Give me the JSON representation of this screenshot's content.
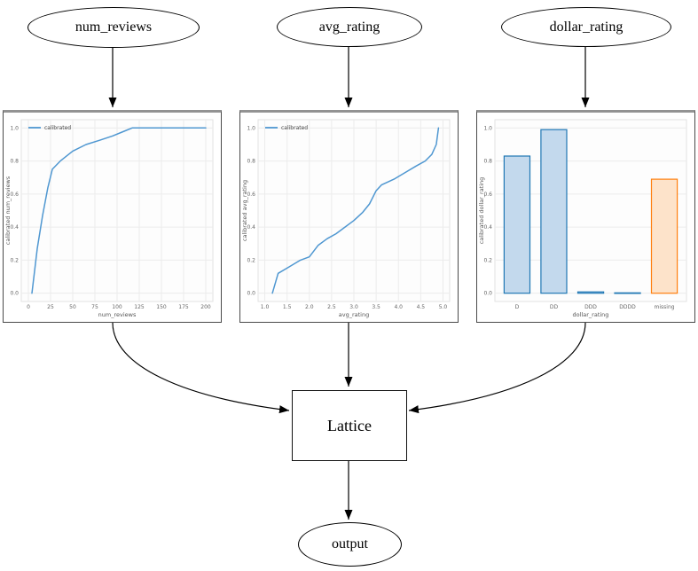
{
  "diagram": {
    "nodes": {
      "input1": {
        "label": "num_reviews"
      },
      "input2": {
        "label": "avg_rating"
      },
      "input3": {
        "label": "dollar_rating"
      },
      "lattice": {
        "label": "Lattice"
      },
      "output": {
        "label": "output"
      }
    }
  },
  "colors": {
    "line_blue": "#4f97d1",
    "bar_blue_fill": "#c3d9ed",
    "bar_blue_edge": "#1f77b4",
    "bar_orange_fill": "#fde3ca",
    "bar_orange_edge": "#ff7f0e",
    "grid": "#ececec",
    "plot_border": "#e2e2e2",
    "tick_text": "#666666",
    "edge_black": "#000000"
  },
  "chart_data": [
    {
      "type": "line",
      "xlabel": "num_reviews",
      "ylabel": "calibrated num_reviews",
      "legend": [
        "calibrated"
      ],
      "legend_position": "upper-left",
      "xlim": [
        -8,
        208
      ],
      "ylim": [
        -0.05,
        1.05
      ],
      "xticks": [
        [
          0,
          "0"
        ],
        [
          25,
          "25"
        ],
        [
          50,
          "50"
        ],
        [
          75,
          "75"
        ],
        [
          100,
          "100"
        ],
        [
          125,
          "125"
        ],
        [
          150,
          "150"
        ],
        [
          175,
          "175"
        ],
        [
          200,
          "200"
        ]
      ],
      "yticks": [
        [
          0.0,
          "0.0"
        ],
        [
          0.2,
          "0.2"
        ],
        [
          0.4,
          "0.4"
        ],
        [
          0.6,
          "0.6"
        ],
        [
          0.8,
          "0.8"
        ],
        [
          1.0,
          "1.0"
        ]
      ],
      "grid": true,
      "series": [
        {
          "name": "calibrated",
          "color": "#4f97d1",
          "points": [
            [
              4,
              0.0
            ],
            [
              10,
              0.27
            ],
            [
              16,
              0.47
            ],
            [
              22,
              0.64
            ],
            [
              27,
              0.75
            ],
            [
              36,
              0.8
            ],
            [
              50,
              0.86
            ],
            [
              65,
              0.9
            ],
            [
              80,
              0.925
            ],
            [
              95,
              0.952
            ],
            [
              108,
              0.98
            ],
            [
              117,
              1.0
            ],
            [
              200,
              1.0
            ]
          ]
        }
      ]
    },
    {
      "type": "line",
      "xlabel": "avg_rating",
      "ylabel": "calibrated avg_rating",
      "legend": [
        "calibrated"
      ],
      "legend_position": "upper-left",
      "xlim": [
        0.85,
        5.15
      ],
      "ylim": [
        -0.05,
        1.05
      ],
      "xticks": [
        [
          1.0,
          "1.0"
        ],
        [
          1.5,
          "1.5"
        ],
        [
          2.0,
          "2.0"
        ],
        [
          2.5,
          "2.5"
        ],
        [
          3.0,
          "3.0"
        ],
        [
          3.5,
          "3.5"
        ],
        [
          4.0,
          "4.0"
        ],
        [
          4.5,
          "4.5"
        ],
        [
          5.0,
          "5.0"
        ]
      ],
      "yticks": [
        [
          0.0,
          "0.0"
        ],
        [
          0.2,
          "0.2"
        ],
        [
          0.4,
          "0.4"
        ],
        [
          0.6,
          "0.6"
        ],
        [
          0.8,
          "0.8"
        ],
        [
          1.0,
          "1.0"
        ]
      ],
      "grid": true,
      "series": [
        {
          "name": "calibrated",
          "color": "#4f97d1",
          "points": [
            [
              1.17,
              0.0
            ],
            [
              1.3,
              0.12
            ],
            [
              1.55,
              0.16
            ],
            [
              1.8,
              0.2
            ],
            [
              2.0,
              0.22
            ],
            [
              2.2,
              0.29
            ],
            [
              2.4,
              0.33
            ],
            [
              2.6,
              0.36
            ],
            [
              2.8,
              0.4
            ],
            [
              3.0,
              0.44
            ],
            [
              3.2,
              0.49
            ],
            [
              3.35,
              0.54
            ],
            [
              3.5,
              0.62
            ],
            [
              3.62,
              0.655
            ],
            [
              3.9,
              0.69
            ],
            [
              4.15,
              0.73
            ],
            [
              4.4,
              0.77
            ],
            [
              4.6,
              0.8
            ],
            [
              4.75,
              0.84
            ],
            [
              4.85,
              0.9
            ],
            [
              4.9,
              1.0
            ]
          ]
        }
      ]
    },
    {
      "type": "bar",
      "xlabel": "dollar_rating",
      "ylabel": "calibrated dollar_rating",
      "categories": [
        "D",
        "DD",
        "DDD",
        "DDDD",
        "missing"
      ],
      "values": [
        0.83,
        0.99,
        0.008,
        0.002,
        0.69
      ],
      "bar_fill": [
        "#c3d9ed",
        "#c3d9ed",
        "#c3d9ed",
        "#c3d9ed",
        "#fde3ca"
      ],
      "bar_edge": [
        "#1f77b4",
        "#1f77b4",
        "#1f77b4",
        "#1f77b4",
        "#ff7f0e"
      ],
      "bar_width": 0.7,
      "xlim": [
        -0.6,
        4.6
      ],
      "ylim": [
        -0.05,
        1.05
      ],
      "yticks": [
        [
          0.0,
          "0.0"
        ],
        [
          0.2,
          "0.2"
        ],
        [
          0.4,
          "0.4"
        ],
        [
          0.6,
          "0.6"
        ],
        [
          0.8,
          "0.8"
        ],
        [
          1.0,
          "1.0"
        ]
      ],
      "grid": true
    }
  ]
}
